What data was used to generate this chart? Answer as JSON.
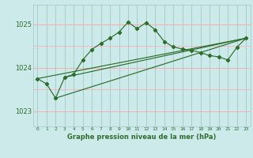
{
  "title": "Graphe pression niveau de la mer (hPa)",
  "bg_color": "#cceaea",
  "grid_color_h": "#ffaaaa",
  "grid_color_v": "#aacccc",
  "line_color": "#2d6e2d",
  "xlim": [
    -0.5,
    23.5
  ],
  "ylim": [
    1022.65,
    1025.45
  ],
  "yticks": [
    1023,
    1024,
    1025
  ],
  "xticks": [
    0,
    1,
    2,
    3,
    4,
    5,
    6,
    7,
    8,
    9,
    10,
    11,
    12,
    13,
    14,
    15,
    16,
    17,
    18,
    19,
    20,
    21,
    22,
    23
  ],
  "series1_x": [
    0,
    1,
    2,
    3,
    4,
    5,
    6,
    7,
    8,
    9,
    10,
    11,
    12,
    13,
    14,
    15,
    16,
    17,
    18,
    19,
    20,
    21,
    22,
    23
  ],
  "series1_y": [
    1023.75,
    1023.63,
    1023.3,
    1023.78,
    1023.85,
    1024.18,
    1024.42,
    1024.56,
    1024.68,
    1024.82,
    1025.05,
    1024.9,
    1025.04,
    1024.87,
    1024.6,
    1024.48,
    1024.43,
    1024.4,
    1024.35,
    1024.28,
    1024.25,
    1024.18,
    1024.47,
    1024.68
  ],
  "trend1_x": [
    2,
    23
  ],
  "trend1_y": [
    1023.3,
    1024.68
  ],
  "trend2_x": [
    0,
    23
  ],
  "trend2_y": [
    1023.75,
    1024.68
  ],
  "trend3_x": [
    3,
    23
  ],
  "trend3_y": [
    1023.78,
    1024.68
  ]
}
